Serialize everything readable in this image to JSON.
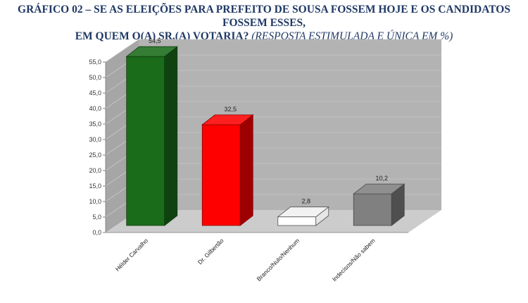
{
  "title": {
    "line1": "GRÁFICO 02 – SE AS ELEIÇÕES PARA PREFEITO DE SOUSA FOSSEM HOJE E OS CANDIDATOS FOSSEM ESSES,",
    "line2_main": "EM QUEM O(A) SR.(A) VOTARIA?",
    "line2_italic": "(RESPOSTA ESTIMULADA E ÚNICA EM %)"
  },
  "chart_data": {
    "type": "bar",
    "categories": [
      "Hélder Carvalho",
      "Dr. Gilbertão",
      "Branco/Nulo/Nenhum",
      "Indecisos/Não sabem"
    ],
    "values": [
      54.5,
      32.5,
      2.8,
      10.2
    ],
    "value_labels": [
      "54,5",
      "32,5",
      "2,8",
      "10,2"
    ],
    "colors": [
      "#1a6b1a",
      "#ff0000",
      "#ffffff",
      "#808080"
    ],
    "ylim": [
      0,
      55
    ],
    "yticks": [
      "0,0",
      "5,0",
      "10,0",
      "15,0",
      "20,0",
      "25,0",
      "30,0",
      "35,0",
      "40,0",
      "45,0",
      "50,0",
      "55,0"
    ],
    "grid": true,
    "style": "3d",
    "wall_color": "#b3b3b3",
    "floor_color": "#cccccc"
  }
}
